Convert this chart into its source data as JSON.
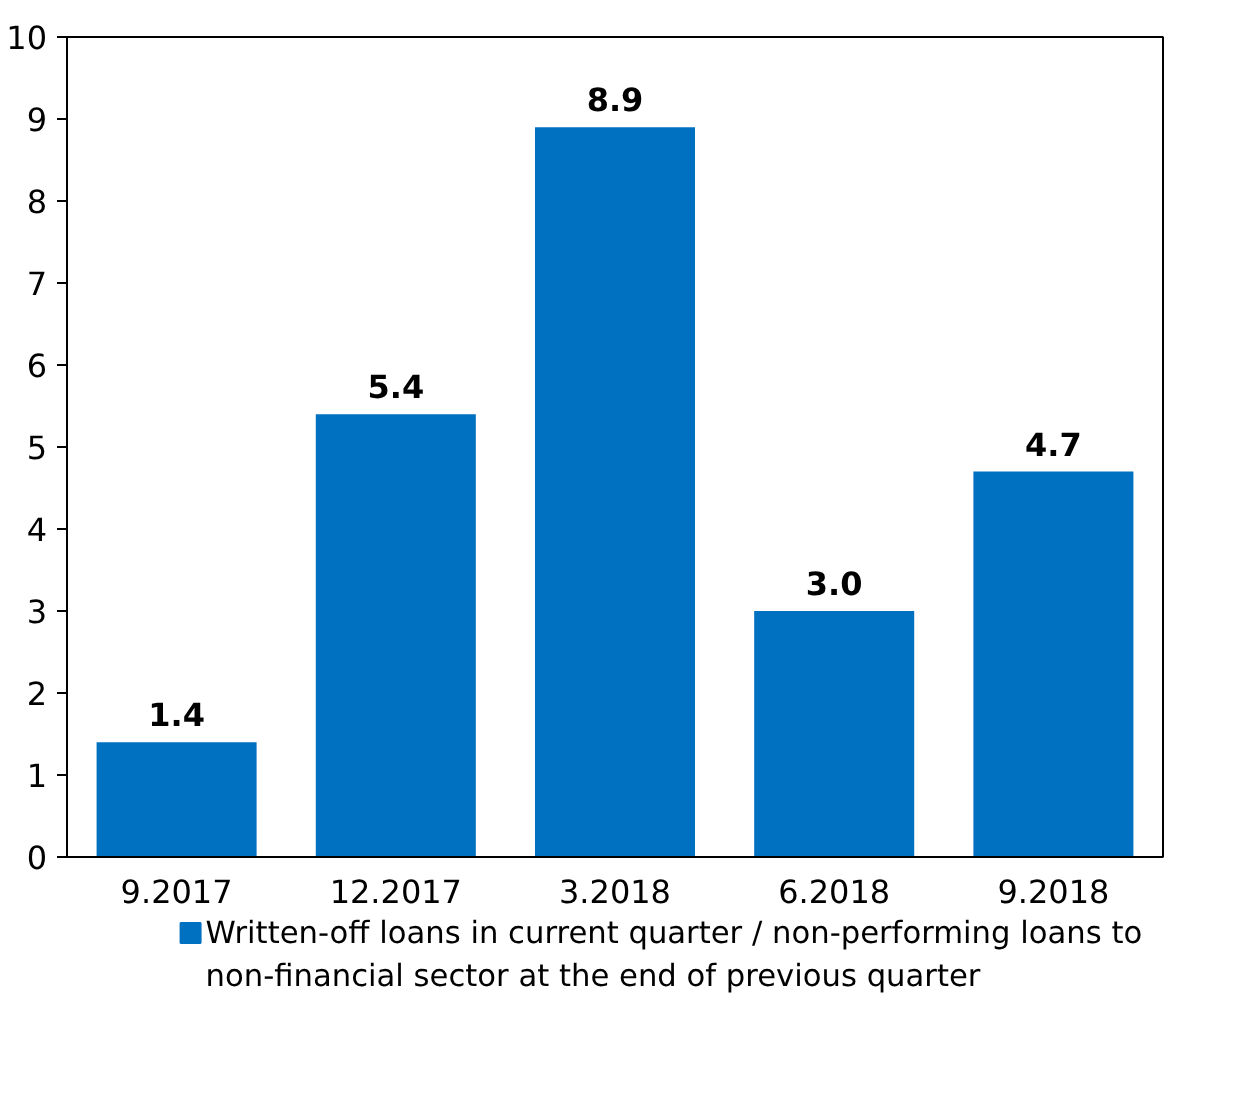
{
  "chart_data": {
    "type": "bar",
    "categories": [
      "9.2017",
      "12.2017",
      "3.2018",
      "6.2018",
      "9.2018"
    ],
    "series": [
      {
        "name": "Written-off loans in current quarter / non-performing loans to non-financial sector at the end of previous quarter",
        "color": "#0070c0",
        "values": [
          1.4,
          5.4,
          8.9,
          3.0,
          4.7
        ]
      }
    ],
    "value_labels": [
      "1.4",
      "5.4",
      "8.9",
      "3.0",
      "4.7"
    ],
    "ylim": [
      0,
      10
    ],
    "yticks": [
      0,
      1,
      2,
      3,
      4,
      5,
      6,
      7,
      8,
      9,
      10
    ],
    "grid": false,
    "legend": "bottom"
  }
}
